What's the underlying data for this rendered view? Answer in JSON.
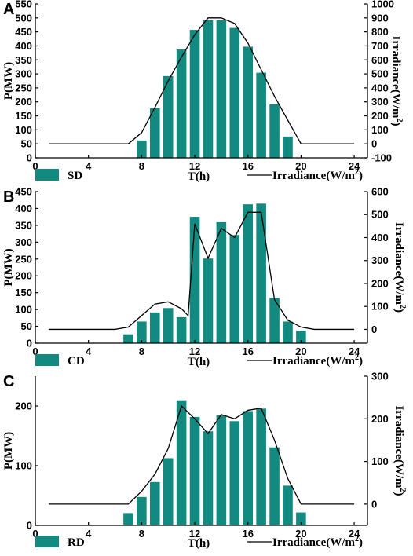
{
  "colors": {
    "bar": "#138a80",
    "bar_edge": "#ffffff",
    "line": "#000000",
    "axis": "#000000"
  },
  "chart_data": [
    {
      "type": "bar",
      "panel_label": "A",
      "legend_bar": "SD",
      "legend_line": "Irradiance(W/m",
      "legend_line_sup": "2",
      "legend_line_close": ")",
      "xlabel": "T(h)",
      "ylabel": "P(MW)",
      "y2label": "Irradiance(W/m",
      "y2label_sup": "2",
      "y2label_close": ")",
      "xlim": [
        0,
        25
      ],
      "xticks": [
        0,
        4,
        8,
        12,
        16,
        20,
        24
      ],
      "ylim": [
        0,
        550
      ],
      "yticks": [
        0,
        50,
        100,
        150,
        200,
        250,
        300,
        350,
        400,
        450,
        500,
        550
      ],
      "y2lim": [
        -100,
        1000
      ],
      "y2ticks": [
        -100,
        0,
        100,
        200,
        300,
        400,
        500,
        600,
        700,
        800,
        900,
        1000
      ],
      "bars": {
        "x": [
          8,
          9,
          10,
          11,
          12,
          13,
          14,
          15,
          16,
          17,
          18,
          19
        ],
        "values": [
          63,
          178,
          293,
          388,
          458,
          492,
          492,
          465,
          398,
          305,
          192,
          77
        ]
      },
      "line": {
        "x": [
          1,
          2,
          3,
          4,
          5,
          6,
          7,
          8,
          9,
          10,
          11,
          12,
          13,
          14,
          15,
          16,
          17,
          18,
          19,
          20,
          21,
          22,
          23,
          24
        ],
        "values": [
          0,
          0,
          0,
          0,
          0,
          0,
          0,
          80,
          260,
          450,
          620,
          780,
          900,
          900,
          860,
          720,
          530,
          340,
          170,
          0,
          0,
          0,
          0,
          0
        ]
      }
    },
    {
      "type": "bar",
      "panel_label": "B",
      "legend_bar": "CD",
      "legend_line": "Irradiance(W/m",
      "legend_line_sup": "2",
      "legend_line_close": ")",
      "xlabel": "T(h)",
      "ylabel": "P(MW)",
      "y2label": "Irradiance(W/m",
      "y2label_sup": "2",
      "y2label_close": ")",
      "xlim": [
        0,
        25
      ],
      "xticks": [
        0,
        4,
        8,
        12,
        16,
        20,
        24
      ],
      "ylim": [
        0,
        450
      ],
      "yticks": [
        0,
        50,
        100,
        150,
        200,
        250,
        300,
        350,
        400,
        450
      ],
      "y2lim": [
        -60,
        600
      ],
      "y2ticks": [
        0,
        100,
        200,
        300,
        400,
        500,
        600
      ],
      "bars": {
        "x": [
          7,
          8,
          9,
          10,
          11,
          12,
          13,
          14,
          15,
          16,
          17,
          18,
          19,
          20
        ],
        "values": [
          27,
          65,
          92,
          105,
          78,
          376,
          252,
          360,
          322,
          413,
          415,
          135,
          65,
          38
        ]
      },
      "line": {
        "x": [
          1,
          2,
          3,
          4,
          5,
          6,
          7,
          8,
          9,
          10,
          11,
          11.5,
          12,
          13,
          14,
          15,
          16,
          17,
          18,
          19,
          20,
          21,
          22,
          23,
          24
        ],
        "values": [
          0,
          0,
          0,
          0,
          0,
          0,
          10,
          60,
          110,
          120,
          90,
          60,
          460,
          310,
          440,
          400,
          510,
          510,
          130,
          40,
          10,
          0,
          0,
          0,
          0
        ]
      }
    },
    {
      "type": "bar",
      "panel_label": "C",
      "legend_bar": "RD",
      "legend_line": "Irradiance(W/m",
      "legend_line_sup": "2",
      "legend_line_close": ")",
      "xlabel": "T(h)",
      "ylabel": "P(MW)",
      "y2label": "Irradiance(W/m",
      "y2label_sup": "2",
      "y2label_close": ")",
      "xlim": [
        0,
        25
      ],
      "xticks": [
        0,
        4,
        8,
        12,
        16,
        20,
        24
      ],
      "ylim": [
        0,
        250
      ],
      "yticks": [
        0,
        100,
        200
      ],
      "y2lim": [
        -50,
        300
      ],
      "y2ticks": [
        0,
        100,
        200,
        300
      ],
      "bars": {
        "x": [
          7,
          8,
          9,
          10,
          11,
          12,
          13,
          14,
          15,
          16,
          17,
          18,
          19,
          20
        ],
        "values": [
          21,
          48,
          73,
          113,
          210,
          182,
          158,
          185,
          175,
          192,
          196,
          131,
          67,
          22
        ]
      },
      "line": {
        "x": [
          1,
          2,
          3,
          4,
          5,
          6,
          7,
          8,
          9,
          10,
          11,
          12,
          13,
          14,
          15,
          16,
          17,
          18,
          19,
          20,
          21,
          22,
          23,
          24
        ],
        "values": [
          0,
          0,
          0,
          0,
          0,
          0,
          0,
          30,
          70,
          130,
          230,
          200,
          165,
          210,
          200,
          220,
          225,
          150,
          60,
          0,
          0,
          0,
          0,
          0
        ]
      }
    }
  ]
}
